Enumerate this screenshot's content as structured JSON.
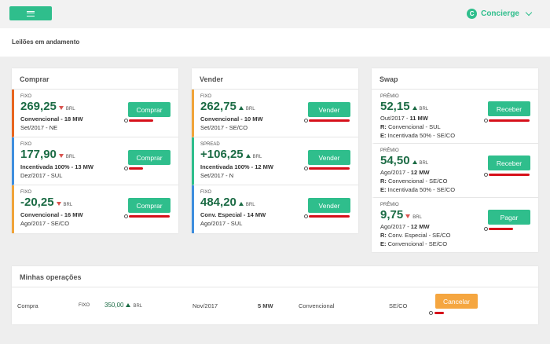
{
  "header": {
    "concierge_initial": "C",
    "concierge_label": "Concierge"
  },
  "subheader": {
    "title": "Leilões em andamento"
  },
  "comprar": {
    "title": "Comprar",
    "rows": [
      {
        "type": "FIXO",
        "price": "269,25",
        "direction": "down",
        "unit": "BRL",
        "product": "Convencional - 18 MW",
        "period": "Set/2017 - NE",
        "action": "Comprar",
        "time_left_fraction": 0.6,
        "bar_color": "#e8651f"
      },
      {
        "type": "FIXO",
        "price": "177,90",
        "direction": "down",
        "unit": "BRL",
        "product": "Incentivada 100% - 13 MW",
        "period": "Dez/2017 - SUL",
        "action": "Comprar",
        "time_left_fraction": 0.35,
        "bar_color": "#3e8ede"
      },
      {
        "type": "FIXO",
        "price": "-20,25",
        "direction": "down",
        "unit": "BRL",
        "product": "Convencional - 16 MW",
        "period": "Ago/2017 - SE/CO",
        "action": "Comprar",
        "time_left_fraction": 1.0,
        "bar_color": "#f0a43a"
      }
    ]
  },
  "vender": {
    "title": "Vender",
    "rows": [
      {
        "type": "FIXO",
        "price": "262,75",
        "direction": "up",
        "unit": "BRL",
        "product": "Convencional - 10 MW",
        "period": "Set/2017 - SE/CO",
        "action": "Vender",
        "time_left_fraction": 1.0,
        "bar_color": "#f0a43a"
      },
      {
        "type": "SPREAD",
        "price": "+106,25",
        "direction": "up",
        "unit": "BRL",
        "product": "Incentivada 100% - 12 MW",
        "period": "Set/2017 - N",
        "action": "Vender",
        "time_left_fraction": 1.0,
        "bar_color": "#2fbe8c"
      },
      {
        "type": "FIXO",
        "price": "484,20",
        "direction": "up",
        "unit": "BRL",
        "product": "Conv. Especial - 14 MW",
        "period": "Ago/2017 - SUL",
        "action": "Vender",
        "time_left_fraction": 1.0,
        "bar_color": "#3e8ede"
      }
    ]
  },
  "swap": {
    "title": "Swap",
    "rows": [
      {
        "type": "PRÊMIO",
        "price": "52,15",
        "direction": "up",
        "unit": "BRL",
        "period": "Out/2017",
        "volume": "11 MW",
        "r_label": "R:",
        "r_value": "Convencional - SUL",
        "e_label": "E:",
        "e_value": "Incentivada 50% - SE/CO",
        "action": "Receber",
        "time_left_fraction": 1.0
      },
      {
        "type": "PRÊMIO",
        "price": "54,50",
        "direction": "up",
        "unit": "BRL",
        "period": "Ago/2017",
        "volume": "12 MW",
        "r_label": "R:",
        "r_value": "Convencional - SE/CO",
        "e_label": "E:",
        "e_value": "Incentivada 50% - SE/CO",
        "action": "Receber",
        "time_left_fraction": 1.0
      },
      {
        "type": "PRÊMIO",
        "price": "9,75",
        "direction": "down",
        "unit": "BRL",
        "period": "Ago/2017",
        "volume": "12 MW",
        "r_label": "R:",
        "r_value": "Conv. Especial - SE/CO",
        "e_label": "E:",
        "e_value": "Convencional - SE/CO",
        "action": "Pagar",
        "time_left_fraction": 0.6
      }
    ]
  },
  "operations": {
    "title": "Minhas operações",
    "row": {
      "kind": "Compra",
      "type": "FIXO",
      "price": "350,00",
      "unit": "BRL",
      "period": "Nov/2017",
      "volume": "5 MW",
      "product": "Convencional",
      "submarket": "SE/CO",
      "action": "Cancelar"
    }
  }
}
